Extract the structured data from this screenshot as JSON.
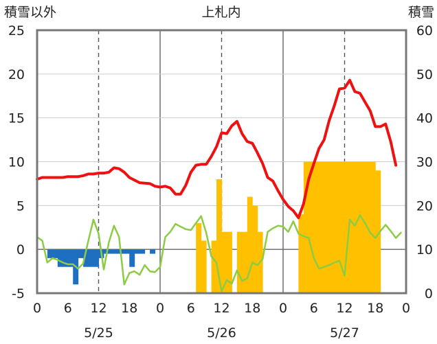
{
  "chart_data": {
    "type": "bar+line",
    "title": "上札内",
    "left_axis_label": "積雪以外",
    "right_axis_label": "積雪",
    "left_ylim": [
      -5,
      25
    ],
    "left_ticks": [
      "-5",
      "0",
      "5",
      "10",
      "15",
      "20",
      "25"
    ],
    "right_ylim": [
      0,
      60
    ],
    "right_ticks": [
      "0",
      "10",
      "20",
      "30",
      "40",
      "50",
      "60"
    ],
    "x_range_hours": [
      0,
      72
    ],
    "x_tick_labels": [
      "0",
      "6",
      "12",
      "18",
      "0",
      "6",
      "12",
      "18",
      "0",
      "6",
      "12",
      "18",
      "0"
    ],
    "date_labels": [
      "5/25",
      "5/26",
      "5/27"
    ],
    "grid": "dashed at 12h, solid at day boundaries",
    "colors": {
      "temperature": "#ee1111",
      "green_line": "#8ccc44",
      "negative_bars": "#1f6fc0",
      "snow_bars": "#ffc000",
      "frame": "#777777"
    },
    "series": [
      {
        "kind": "line",
        "axis": "left",
        "color": "#ee1111",
        "points": [
          [
            0,
            8.0
          ],
          [
            1,
            8.2
          ],
          [
            3,
            8.2
          ],
          [
            5,
            8.2
          ],
          [
            6,
            8.3
          ],
          [
            8,
            8.3
          ],
          [
            9,
            8.4
          ],
          [
            10,
            8.6
          ],
          [
            11,
            8.6
          ],
          [
            12,
            8.7
          ],
          [
            13,
            8.7
          ],
          [
            14,
            8.8
          ],
          [
            15,
            9.3
          ],
          [
            16,
            9.2
          ],
          [
            17,
            8.8
          ],
          [
            18,
            8.2
          ],
          [
            19,
            7.9
          ],
          [
            20,
            7.6
          ],
          [
            22,
            7.5
          ],
          [
            23,
            7.2
          ],
          [
            24,
            7.1
          ],
          [
            25,
            7.2
          ],
          [
            26,
            7.0
          ],
          [
            27,
            6.3
          ],
          [
            28,
            6.3
          ],
          [
            29,
            7.3
          ],
          [
            30,
            8.8
          ],
          [
            31,
            9.6
          ],
          [
            32,
            9.7
          ],
          [
            33,
            9.7
          ],
          [
            34,
            10.6
          ],
          [
            35,
            11.7
          ],
          [
            36,
            13.3
          ],
          [
            37,
            13.2
          ],
          [
            38,
            14.1
          ],
          [
            39,
            14.6
          ],
          [
            40,
            13.2
          ],
          [
            41,
            12.3
          ],
          [
            42,
            12.1
          ],
          [
            43,
            11.0
          ],
          [
            44,
            9.8
          ],
          [
            45,
            8.2
          ],
          [
            46,
            7.8
          ],
          [
            47,
            6.7
          ],
          [
            48,
            5.7
          ],
          [
            49,
            4.9
          ],
          [
            50,
            4.4
          ],
          [
            51,
            3.6
          ],
          [
            52,
            5.2
          ],
          [
            53,
            8.0
          ],
          [
            54,
            9.8
          ],
          [
            55,
            11.5
          ],
          [
            56,
            12.5
          ],
          [
            57,
            14.7
          ],
          [
            58,
            16.4
          ],
          [
            59,
            18.3
          ],
          [
            60,
            18.4
          ],
          [
            61,
            19.3
          ],
          [
            62,
            18.0
          ],
          [
            63,
            17.8
          ],
          [
            64,
            16.8
          ],
          [
            65,
            15.8
          ],
          [
            66,
            14.0
          ],
          [
            67,
            14.0
          ],
          [
            68,
            14.3
          ],
          [
            69,
            12.3
          ],
          [
            70,
            9.6
          ]
        ]
      },
      {
        "kind": "line",
        "axis": "left",
        "color": "#8ccc44",
        "points": [
          [
            0,
            1.4
          ],
          [
            1,
            1.0
          ],
          [
            2,
            -1.5
          ],
          [
            3,
            -1.0
          ],
          [
            4,
            -1.2
          ],
          [
            5,
            -1.5
          ],
          [
            6,
            -1.7
          ],
          [
            7,
            -1.7
          ],
          [
            8,
            -2.2
          ],
          [
            9,
            -1.6
          ],
          [
            10,
            1.0
          ],
          [
            11,
            3.4
          ],
          [
            12,
            1.8
          ],
          [
            13,
            -2.3
          ],
          [
            14,
            0.8
          ],
          [
            15,
            2.7
          ],
          [
            16,
            1.4
          ],
          [
            17,
            -4.0
          ],
          [
            18,
            -2.7
          ],
          [
            19,
            -2.5
          ],
          [
            20,
            -2.9
          ],
          [
            21,
            -1.8
          ],
          [
            22,
            -2.5
          ],
          [
            23,
            -2.6
          ],
          [
            24,
            -2.0
          ],
          [
            25,
            1.4
          ],
          [
            26,
            2.0
          ],
          [
            27,
            2.9
          ],
          [
            28,
            2.6
          ],
          [
            29,
            2.3
          ],
          [
            30,
            2.2
          ],
          [
            31,
            3.0
          ],
          [
            32,
            3.8
          ],
          [
            33,
            1.9
          ],
          [
            34,
            -0.8
          ],
          [
            35,
            -1.5
          ],
          [
            36,
            -4.8
          ],
          [
            37,
            -3.5
          ],
          [
            38,
            -3.9
          ],
          [
            39,
            -2.4
          ],
          [
            40,
            -3.6
          ],
          [
            41,
            -3.3
          ],
          [
            42,
            -1.5
          ],
          [
            43,
            -1.8
          ],
          [
            44,
            -1.1
          ],
          [
            45,
            2.0
          ],
          [
            46,
            2.4
          ],
          [
            47,
            2.7
          ],
          [
            48,
            2.6
          ],
          [
            49,
            2.0
          ],
          [
            50,
            3.2
          ],
          [
            51,
            1.8
          ],
          [
            52,
            1.5
          ],
          [
            53,
            1.3
          ],
          [
            54,
            -1.0
          ],
          [
            55,
            -2.2
          ],
          [
            56,
            -2.0
          ],
          [
            57,
            -1.8
          ],
          [
            58,
            -1.5
          ],
          [
            59,
            -1.3
          ],
          [
            60,
            -3.0
          ],
          [
            61,
            3.4
          ],
          [
            62,
            2.7
          ],
          [
            63,
            3.9
          ],
          [
            64,
            3.0
          ],
          [
            65,
            1.9
          ],
          [
            66,
            1.3
          ],
          [
            67,
            2.1
          ],
          [
            68,
            2.8
          ],
          [
            69,
            2.1
          ],
          [
            70,
            1.3
          ],
          [
            71,
            1.9
          ]
        ]
      },
      {
        "kind": "bar",
        "axis": "left",
        "color": "#1f6fc0",
        "bars": [
          [
            2,
            -1.0
          ],
          [
            3,
            -1.0
          ],
          [
            4,
            -2.0
          ],
          [
            5,
            -2.0
          ],
          [
            6,
            -2.0
          ],
          [
            7,
            -4.0
          ],
          [
            8,
            -1.0
          ],
          [
            9,
            -2.0
          ],
          [
            10,
            -2.0
          ],
          [
            11,
            -2.0
          ],
          [
            12,
            -1.0
          ],
          [
            13,
            -0.5
          ],
          [
            14,
            -0.5
          ],
          [
            15,
            -0.5
          ],
          [
            16,
            -0.5
          ],
          [
            17,
            -0.5
          ],
          [
            18,
            -2.0
          ],
          [
            19,
            -0.5
          ],
          [
            20,
            -0.5
          ],
          [
            22,
            -0.5
          ]
        ]
      },
      {
        "kind": "bar",
        "axis": "right",
        "color": "#ffc000",
        "bars": [
          [
            31,
            16
          ],
          [
            32,
            12
          ],
          [
            34,
            12
          ],
          [
            35,
            26
          ],
          [
            36,
            14
          ],
          [
            37,
            14
          ],
          [
            39,
            14
          ],
          [
            40,
            14
          ],
          [
            41,
            22
          ],
          [
            42,
            20
          ],
          [
            43,
            14
          ],
          [
            51,
            18
          ],
          [
            52,
            30
          ],
          [
            53,
            30
          ],
          [
            54,
            30
          ],
          [
            55,
            30
          ],
          [
            56,
            30
          ],
          [
            57,
            30
          ],
          [
            58,
            30
          ],
          [
            59,
            30
          ],
          [
            60,
            30
          ],
          [
            61,
            30
          ],
          [
            62,
            30
          ],
          [
            63,
            30
          ],
          [
            64,
            30
          ],
          [
            65,
            30
          ],
          [
            66,
            28
          ]
        ]
      }
    ]
  }
}
